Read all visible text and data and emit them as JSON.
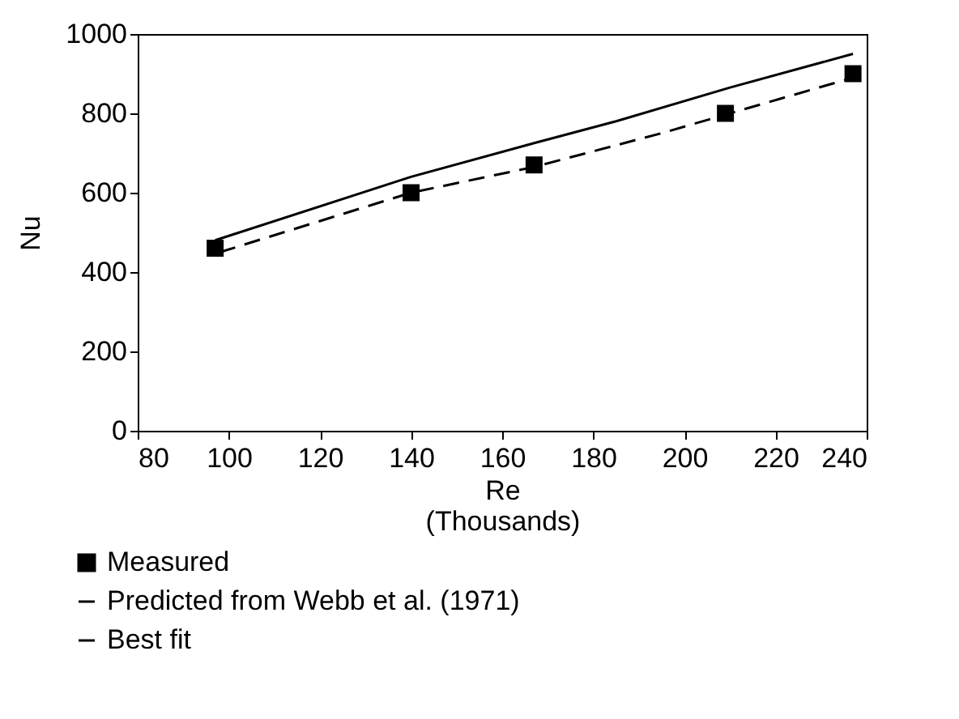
{
  "chart_data": {
    "type": "line",
    "xlabel": "Re\n(Thousands)",
    "ylabel": "Nu",
    "xlim": [
      80,
      240
    ],
    "xticks": [
      80,
      100,
      120,
      140,
      160,
      180,
      200,
      220,
      240
    ],
    "ylim": [
      0,
      1000
    ],
    "yticks": [
      0,
      200,
      400,
      600,
      800,
      1000
    ],
    "grid": false,
    "legend": "bottom left",
    "series": [
      {
        "name": "Measured",
        "type": "scatter",
        "marker": "square",
        "color": "#000000",
        "x": [
          97,
          140,
          167,
          209,
          237
        ],
        "values": [
          460,
          600,
          670,
          800,
          900
        ]
      },
      {
        "name": "Predicted from Webb et al. (1971)",
        "line_style": "solid",
        "color": "#000000",
        "x": [
          97,
          140,
          167,
          185,
          210,
          237
        ],
        "values": [
          480,
          640,
          725,
          780,
          865,
          950
        ]
      },
      {
        "name": "Best fit",
        "line_style": "dashed",
        "color": "#000000",
        "x": [
          98,
          140,
          167,
          195,
          210,
          240
        ],
        "values": [
          450,
          600,
          665,
          750,
          800,
          900
        ]
      }
    ]
  }
}
